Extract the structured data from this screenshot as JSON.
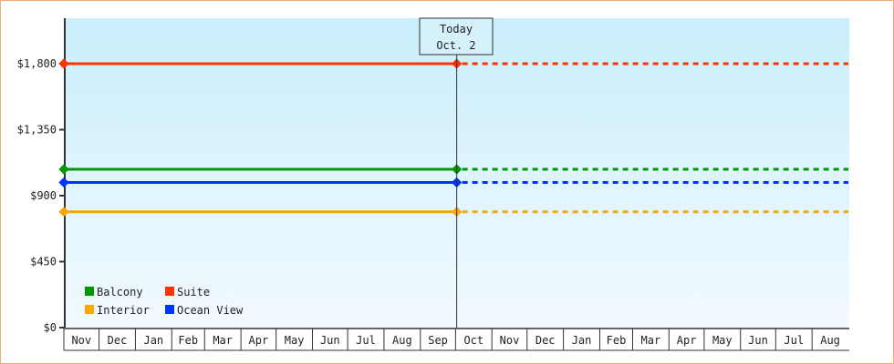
{
  "chart_data": {
    "type": "line",
    "xlabel": "",
    "ylabel": "",
    "ylim": [
      0,
      2100
    ],
    "yticks": [
      0,
      450,
      900,
      1350,
      1800
    ],
    "ytick_labels": [
      "$0",
      "$450",
      "$900",
      "$1,350",
      "$1,800"
    ],
    "x_range": [
      "Nov 1",
      "Aug 31"
    ],
    "months": [
      "Nov",
      "Dec",
      "Jan",
      "Feb",
      "Mar",
      "Apr",
      "May",
      "Jun",
      "Jul",
      "Aug",
      "Sep",
      "Oct",
      "Nov",
      "Dec",
      "Jan",
      "Feb",
      "Mar",
      "Apr",
      "May",
      "Jun",
      "Jul",
      "Aug"
    ],
    "today": {
      "label_line1": "Today",
      "label_line2": "Oct. 2"
    },
    "legend_position": "bottom-left",
    "series": [
      {
        "name": "Balcony",
        "color": "#009900",
        "values": [
          1080,
          1080
        ],
        "projected": 1080
      },
      {
        "name": "Suite",
        "color": "#ff3300",
        "values": [
          1800,
          1800
        ],
        "projected": 1800
      },
      {
        "name": "Interior",
        "color": "#ffa500",
        "values": [
          790,
          790
        ],
        "projected": 790
      },
      {
        "name": "Ocean View",
        "color": "#0033ff",
        "values": [
          990,
          990
        ],
        "projected": 990
      }
    ],
    "background_gradient": [
      "#c9eefc",
      "#f2faff"
    ]
  }
}
